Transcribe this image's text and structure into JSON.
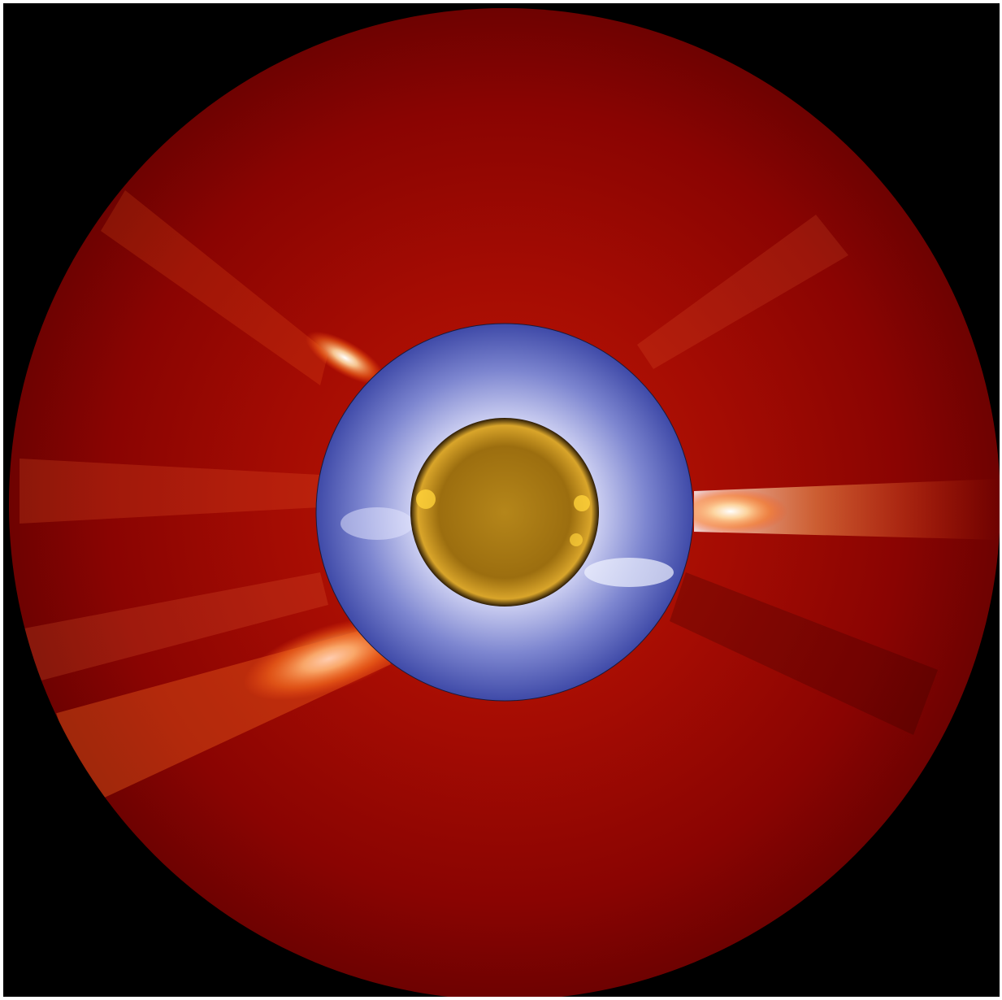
{
  "image": {
    "subject": "composite-solar-corona",
    "background_color": "#000000",
    "frame_color": "#ffffff",
    "layers": [
      {
        "name": "outer-coronagraph-disk",
        "color": "#8c0402",
        "highlight": "#ffffff"
      },
      {
        "name": "inner-coronagraph-ring",
        "color": "#4a55b0",
        "highlight": "#e8ebff"
      },
      {
        "name": "solar-disk",
        "color": "#a87a10",
        "highlight": "#ffd23a"
      }
    ]
  }
}
